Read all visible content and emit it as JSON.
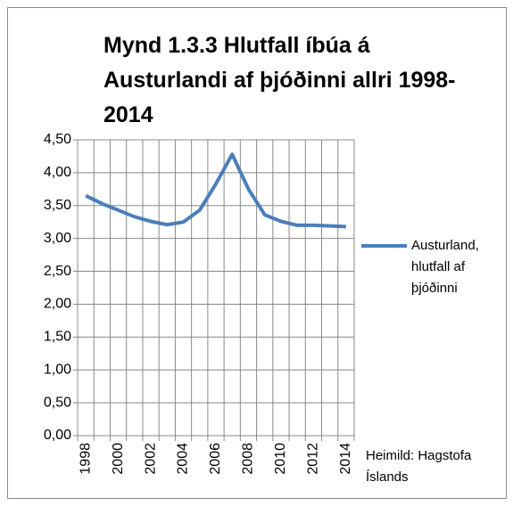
{
  "chart_data": {
    "type": "line",
    "title": "Mynd 1.3.3 Hlutfall íbúa á Austurlandi af þjóðinni allri 1998-2014",
    "categories": [
      "1998",
      null,
      "2000",
      null,
      "2002",
      null,
      "2004",
      null,
      "2006",
      null,
      "2008",
      null,
      "2010",
      null,
      "2012",
      null,
      "2014"
    ],
    "series": [
      {
        "name": "Austurland, hlutfall af þjóðinni",
        "color": "#4a7ebb",
        "values": [
          3.65,
          3.53,
          3.43,
          3.33,
          3.26,
          3.21,
          3.25,
          3.43,
          3.83,
          4.28,
          3.75,
          3.36,
          3.26,
          3.2,
          3.2,
          3.19,
          3.18
        ]
      }
    ],
    "ylim": [
      0,
      4.5
    ],
    "yticks": [
      {
        "value": 0,
        "label": "0,00"
      },
      {
        "value": 0.5,
        "label": "0,50"
      },
      {
        "value": 1,
        "label": "1,00"
      },
      {
        "value": 1.5,
        "label": "1,50"
      },
      {
        "value": 2,
        "label": "2,00"
      },
      {
        "value": 2.5,
        "label": "2,50"
      },
      {
        "value": 3,
        "label": "3,00"
      },
      {
        "value": 3.5,
        "label": "3,50"
      },
      {
        "value": 4,
        "label": "4,00"
      },
      {
        "value": 4.5,
        "label": "4,50"
      }
    ],
    "grid": true,
    "legend": "right",
    "annotation": "Heimild: Hagstofa Íslands"
  }
}
